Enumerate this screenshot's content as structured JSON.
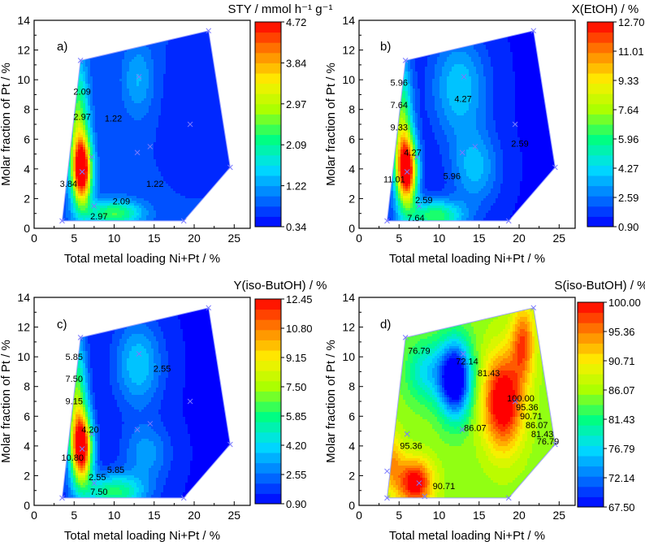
{
  "chart_data": [
    {
      "type": "contour",
      "panel": "a)",
      "title": "STY / mmol h⁻¹ g⁻¹",
      "xlabel": "Total metal loading Ni+Pt / %",
      "ylabel": "Molar fraction of Pt / %",
      "xlim": [
        0,
        27
      ],
      "ylim": [
        0,
        14
      ],
      "x_ticks": [
        "0",
        "5",
        "10",
        "15",
        "20",
        "25"
      ],
      "y_ticks": [
        "0",
        "2",
        "4",
        "6",
        "8",
        "10",
        "12",
        "14"
      ],
      "colorbar": {
        "min": 0.34,
        "max": 4.72,
        "tick_labels": [
          "4.72",
          "3.84",
          "2.97",
          "2.09",
          "1.22",
          "0.34"
        ]
      },
      "hull": [
        [
          3.5,
          0.5
        ],
        [
          5.8,
          11.3
        ],
        [
          21.8,
          13.3
        ],
        [
          24.5,
          4.1
        ],
        [
          18.7,
          0.5
        ]
      ],
      "points": [
        [
          3.5,
          0.5
        ],
        [
          5.8,
          11.3
        ],
        [
          21.8,
          13.3
        ],
        [
          24.5,
          4.1
        ],
        [
          18.7,
          0.5
        ],
        [
          6.0,
          3.8
        ],
        [
          7.5,
          1.5
        ],
        [
          12.9,
          5.1
        ],
        [
          14.5,
          5.5
        ],
        [
          19.5,
          7.0
        ],
        [
          13.1,
          10.2
        ],
        [
          7.2,
          4.8
        ]
      ],
      "contour_labels": [
        {
          "x": 6.0,
          "y": 9.0,
          "text": "2.09"
        },
        {
          "x": 6.0,
          "y": 7.3,
          "text": "2.97"
        },
        {
          "x": 9.9,
          "y": 7.2,
          "text": "1.22"
        },
        {
          "x": 4.3,
          "y": 2.8,
          "text": "3.84"
        },
        {
          "x": 10.9,
          "y": 1.6,
          "text": "2.09"
        },
        {
          "x": 15.1,
          "y": 2.8,
          "text": "1.22"
        },
        {
          "x": 8.1,
          "y": 0.6,
          "text": "2.97"
        }
      ]
    },
    {
      "type": "contour",
      "panel": "b)",
      "title": "X(EtOH) / %",
      "xlabel": "Total metal loading Ni+Pt / %",
      "ylabel": "Molar fraction of Pt / %",
      "xlim": [
        0,
        27
      ],
      "ylim": [
        0,
        14
      ],
      "x_ticks": [
        "0",
        "5",
        "10",
        "15",
        "20",
        "25"
      ],
      "y_ticks": [
        "0",
        "2",
        "4",
        "6",
        "8",
        "10",
        "12",
        "14"
      ],
      "colorbar": {
        "min": 0.9,
        "max": 12.7,
        "tick_labels": [
          "12.70",
          "11.01",
          "9.33",
          "7.64",
          "5.96",
          "4.27",
          "2.59",
          "0.90"
        ]
      },
      "hull": [
        [
          3.5,
          0.5
        ],
        [
          5.8,
          11.3
        ],
        [
          21.8,
          13.3
        ],
        [
          24.5,
          4.1
        ],
        [
          18.7,
          0.5
        ]
      ],
      "points": [
        [
          3.5,
          0.5
        ],
        [
          5.8,
          11.3
        ],
        [
          21.8,
          13.3
        ],
        [
          24.5,
          4.1
        ],
        [
          18.7,
          0.5
        ],
        [
          6.0,
          3.8
        ],
        [
          7.5,
          1.5
        ],
        [
          12.9,
          5.1
        ],
        [
          14.5,
          5.5
        ],
        [
          19.5,
          7.0
        ],
        [
          13.1,
          10.2
        ],
        [
          7.2,
          4.8
        ]
      ],
      "contour_labels": [
        {
          "x": 5.0,
          "y": 9.6,
          "text": "5.96"
        },
        {
          "x": 5.0,
          "y": 8.1,
          "text": "7.64"
        },
        {
          "x": 5.0,
          "y": 6.6,
          "text": "9.33"
        },
        {
          "x": 6.7,
          "y": 4.9,
          "text": "4.27"
        },
        {
          "x": 4.4,
          "y": 3.1,
          "text": "11.01"
        },
        {
          "x": 13.0,
          "y": 8.5,
          "text": "4.27"
        },
        {
          "x": 20.1,
          "y": 5.5,
          "text": "2.59"
        },
        {
          "x": 11.6,
          "y": 3.3,
          "text": "5.96"
        },
        {
          "x": 8.1,
          "y": 1.7,
          "text": "2.59"
        },
        {
          "x": 7.1,
          "y": 0.5,
          "text": "7.64"
        }
      ]
    },
    {
      "type": "contour",
      "panel": "c)",
      "title": "Y(iso-ButOH) / %",
      "xlabel": "Total metal loading Ni+Pt / %",
      "ylabel": "Molar fraction of Pt / %",
      "xlim": [
        0,
        27
      ],
      "ylim": [
        0,
        14
      ],
      "x_ticks": [
        "0",
        "5",
        "10",
        "15",
        "20",
        "25"
      ],
      "y_ticks": [
        "0",
        "2",
        "4",
        "6",
        "8",
        "10",
        "12",
        "14"
      ],
      "colorbar": {
        "min": 0.9,
        "max": 12.45,
        "tick_labels": [
          "12.45",
          "10.80",
          "9.15",
          "7.50",
          "5.85",
          "4.20",
          "2.55",
          "0.90"
        ]
      },
      "hull": [
        [
          3.5,
          0.5
        ],
        [
          5.8,
          11.3
        ],
        [
          21.8,
          13.3
        ],
        [
          24.5,
          4.1
        ],
        [
          18.7,
          0.5
        ]
      ],
      "points": [
        [
          3.5,
          0.5
        ],
        [
          5.8,
          11.3
        ],
        [
          21.8,
          13.3
        ],
        [
          24.5,
          4.1
        ],
        [
          18.7,
          0.5
        ],
        [
          6.0,
          3.8
        ],
        [
          7.5,
          1.5
        ],
        [
          12.9,
          5.1
        ],
        [
          14.5,
          5.5
        ],
        [
          19.5,
          7.0
        ],
        [
          13.1,
          10.2
        ],
        [
          7.2,
          4.8
        ]
      ],
      "contour_labels": [
        {
          "x": 5.0,
          "y": 9.8,
          "text": "5.85"
        },
        {
          "x": 5.0,
          "y": 8.3,
          "text": "7.50"
        },
        {
          "x": 5.0,
          "y": 6.8,
          "text": "9.15"
        },
        {
          "x": 7.0,
          "y": 4.9,
          "text": "4.20"
        },
        {
          "x": 4.8,
          "y": 3.0,
          "text": "10.80"
        },
        {
          "x": 16.0,
          "y": 9.0,
          "text": "2.55"
        },
        {
          "x": 10.2,
          "y": 2.2,
          "text": "5.85"
        },
        {
          "x": 7.9,
          "y": 1.7,
          "text": "2.55"
        },
        {
          "x": 8.1,
          "y": 0.7,
          "text": "7.50"
        }
      ]
    },
    {
      "type": "contour",
      "panel": "d)",
      "title": "S(iso-ButOH) / %",
      "xlabel": "Total metal loading Ni+Pt / %",
      "ylabel": "Molar fraction of Pt / %",
      "xlim": [
        0,
        27
      ],
      "ylim": [
        0,
        14
      ],
      "x_ticks": [
        "0",
        "5",
        "10",
        "15",
        "20",
        "25"
      ],
      "y_ticks": [
        "0",
        "2",
        "4",
        "6",
        "8",
        "10",
        "12",
        "14"
      ],
      "colorbar": {
        "min": 67.5,
        "max": 100.0,
        "tick_labels": [
          "100.00",
          "95.36",
          "90.71",
          "86.07",
          "81.43",
          "76.79",
          "72.14",
          "67.50"
        ]
      },
      "hull": [
        [
          3.5,
          0.5
        ],
        [
          5.8,
          11.3
        ],
        [
          21.8,
          13.3
        ],
        [
          24.5,
          4.1
        ],
        [
          18.7,
          0.5
        ]
      ],
      "points": [
        [
          3.5,
          2.3
        ],
        [
          5.8,
          11.3
        ],
        [
          21.8,
          13.3
        ],
        [
          24.5,
          4.1
        ],
        [
          18.7,
          0.5
        ],
        [
          6.0,
          4.8
        ],
        [
          7.5,
          1.5
        ],
        [
          8.2,
          0.6
        ],
        [
          12.9,
          5.1
        ],
        [
          13.0,
          10.2
        ],
        [
          19.5,
          7.0
        ],
        [
          3.5,
          0.5
        ]
      ],
      "contour_labels": [
        {
          "x": 7.5,
          "y": 10.2,
          "text": "76.79"
        },
        {
          "x": 13.5,
          "y": 9.5,
          "text": "72.14"
        },
        {
          "x": 16.2,
          "y": 8.7,
          "text": "81.43"
        },
        {
          "x": 20.2,
          "y": 7.0,
          "text": "100.00"
        },
        {
          "x": 21.0,
          "y": 6.4,
          "text": "95.36"
        },
        {
          "x": 21.5,
          "y": 5.8,
          "text": "90.71"
        },
        {
          "x": 22.2,
          "y": 5.2,
          "text": "86.07"
        },
        {
          "x": 22.9,
          "y": 4.6,
          "text": "81.43"
        },
        {
          "x": 23.6,
          "y": 4.1,
          "text": "76.79"
        },
        {
          "x": 14.5,
          "y": 5.0,
          "text": "86.07"
        },
        {
          "x": 6.5,
          "y": 3.8,
          "text": "95.36"
        },
        {
          "x": 10.6,
          "y": 1.1,
          "text": "90.71"
        }
      ]
    }
  ],
  "colormap": [
    "#0000ff",
    "#0073ff",
    "#00ddff",
    "#00ff80",
    "#aaff00",
    "#ffee00",
    "#ff8000",
    "#ff0000"
  ],
  "style": {
    "hull_stroke": "#9aa3ff",
    "marker": "#7a7aff",
    "text": "#000000"
  }
}
